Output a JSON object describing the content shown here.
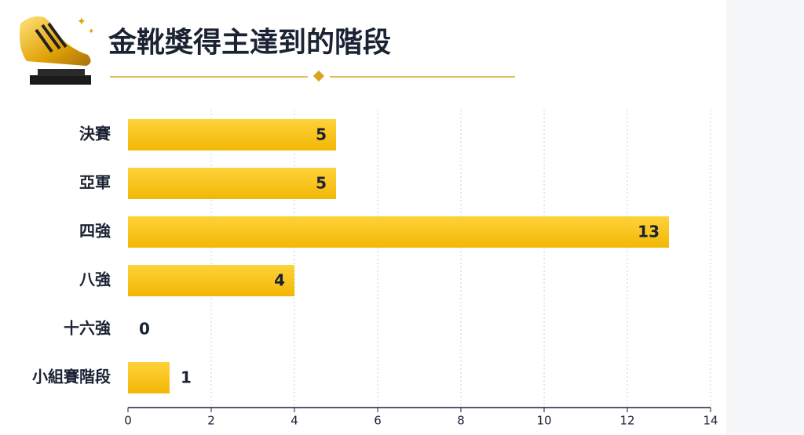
{
  "chart_data": {
    "type": "hbar",
    "title": "金靴獎得主達到的階段",
    "categories": [
      "決賽",
      "亞軍",
      "四強",
      "八強",
      "十六強",
      "小組賽階段"
    ],
    "values": [
      5,
      5,
      13,
      4,
      0,
      1
    ],
    "color": "#f7c21c",
    "xlim": [
      0,
      14
    ],
    "xticks": [
      0,
      2,
      4,
      6,
      8,
      10,
      12,
      14
    ],
    "grid": true
  }
}
